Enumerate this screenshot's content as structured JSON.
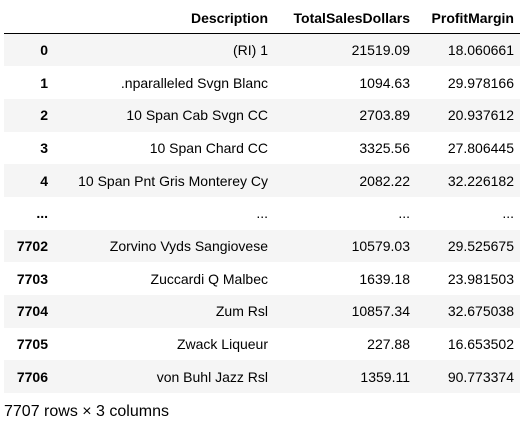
{
  "dataframe": {
    "columns": [
      "Description",
      "TotalSalesDollars",
      "ProfitMargin"
    ],
    "rows": [
      {
        "index": "0",
        "description": "(RI) 1",
        "total_sales_dollars": "21519.09",
        "profit_margin": "18.060661"
      },
      {
        "index": "1",
        "description": ".nparalleled Svgn Blanc",
        "total_sales_dollars": "1094.63",
        "profit_margin": "29.978166"
      },
      {
        "index": "2",
        "description": "10 Span Cab Svgn CC",
        "total_sales_dollars": "2703.89",
        "profit_margin": "20.937612"
      },
      {
        "index": "3",
        "description": "10 Span Chard CC",
        "total_sales_dollars": "3325.56",
        "profit_margin": "27.806445"
      },
      {
        "index": "4",
        "description": "10 Span Pnt Gris Monterey Cy",
        "total_sales_dollars": "2082.22",
        "profit_margin": "32.226182"
      },
      {
        "index": "...",
        "description": "...",
        "total_sales_dollars": "...",
        "profit_margin": "..."
      },
      {
        "index": "7702",
        "description": "Zorvino Vyds Sangiovese",
        "total_sales_dollars": "10579.03",
        "profit_margin": "29.525675"
      },
      {
        "index": "7703",
        "description": "Zuccardi Q Malbec",
        "total_sales_dollars": "1639.18",
        "profit_margin": "23.981503"
      },
      {
        "index": "7704",
        "description": "Zum Rsl",
        "total_sales_dollars": "10857.34",
        "profit_margin": "32.675038"
      },
      {
        "index": "7705",
        "description": "Zwack Liqueur",
        "total_sales_dollars": "227.88",
        "profit_margin": "16.653502"
      },
      {
        "index": "7706",
        "description": "von Buhl Jazz Rsl",
        "total_sales_dollars": "1359.11",
        "profit_margin": "90.773374"
      }
    ],
    "shape_text": "7707 rows × 3 columns"
  },
  "colors": {
    "stripe": "#f5f5f5",
    "background": "#ffffff",
    "text": "#000000"
  }
}
